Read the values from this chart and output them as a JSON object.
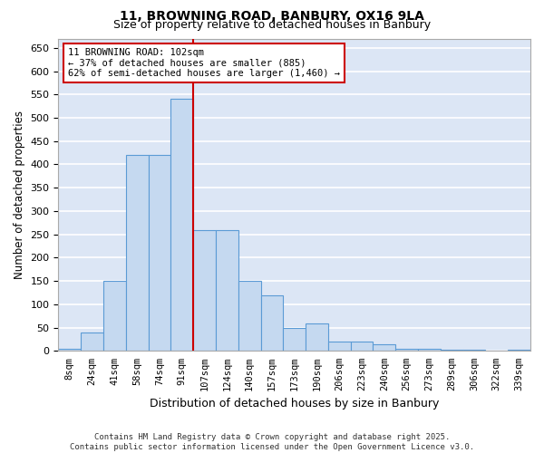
{
  "title1": "11, BROWNING ROAD, BANBURY, OX16 9LA",
  "title2": "Size of property relative to detached houses in Banbury",
  "xlabel": "Distribution of detached houses by size in Banbury",
  "ylabel": "Number of detached properties",
  "categories": [
    "8sqm",
    "24sqm",
    "41sqm",
    "58sqm",
    "74sqm",
    "91sqm",
    "107sqm",
    "124sqm",
    "140sqm",
    "157sqm",
    "173sqm",
    "190sqm",
    "206sqm",
    "223sqm",
    "240sqm",
    "256sqm",
    "273sqm",
    "289sqm",
    "306sqm",
    "322sqm",
    "339sqm"
  ],
  "values": [
    5,
    40,
    150,
    420,
    420,
    540,
    260,
    260,
    150,
    120,
    50,
    60,
    20,
    20,
    15,
    5,
    5,
    2,
    2,
    0,
    2
  ],
  "bar_color": "#c5d9f0",
  "bar_edge_color": "#5b9bd5",
  "red_line_index": 6,
  "annotation_text": "11 BROWNING ROAD: 102sqm\n← 37% of detached houses are smaller (885)\n62% of semi-detached houses are larger (1,460) →",
  "annotation_box_color": "#ffffff",
  "annotation_box_edge": "#cc0000",
  "red_line_color": "#cc0000",
  "background_color": "#dce6f5",
  "grid_color": "#ffffff",
  "footer": "Contains HM Land Registry data © Crown copyright and database right 2025.\nContains public sector information licensed under the Open Government Licence v3.0.",
  "ylim": [
    0,
    670
  ],
  "yticks": [
    0,
    50,
    100,
    150,
    200,
    250,
    300,
    350,
    400,
    450,
    500,
    550,
    600,
    650
  ]
}
